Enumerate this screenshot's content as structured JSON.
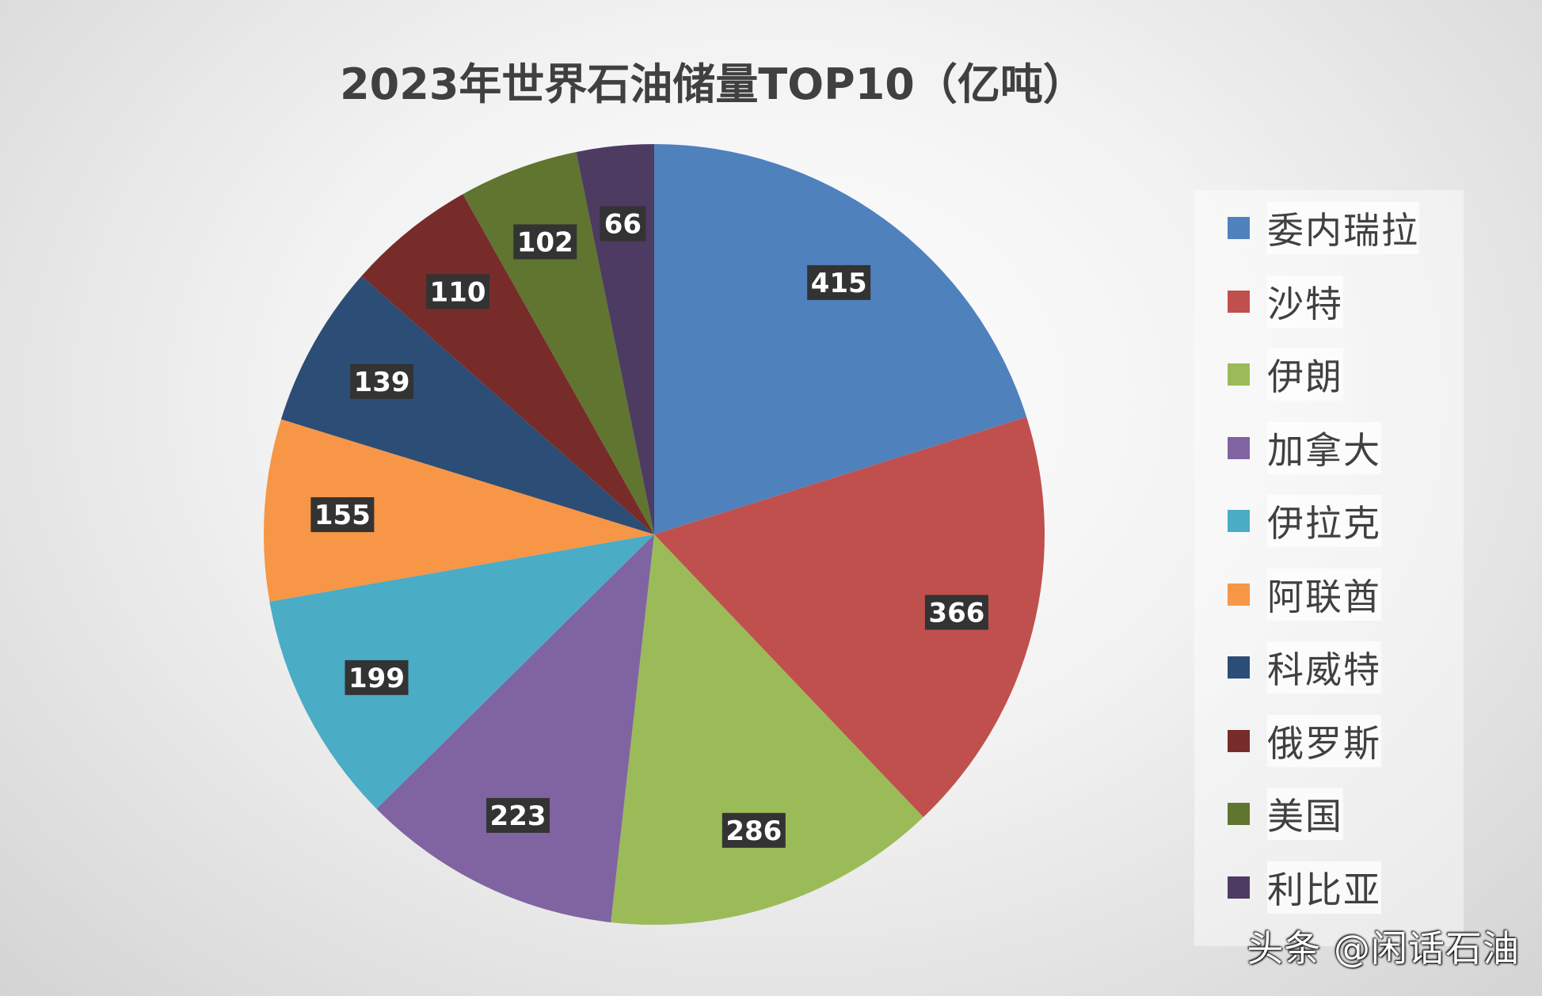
{
  "chart_data": {
    "type": "pie",
    "title": "2023年世界石油储量TOP10（亿吨）",
    "categories": [
      "委内瑞拉",
      "沙特",
      "伊朗",
      "加拿大",
      "伊拉克",
      "阿联酋",
      "科威特",
      "俄罗斯",
      "美国",
      "利比亚"
    ],
    "values": [
      415,
      366,
      286,
      223,
      199,
      155,
      139,
      110,
      102,
      66
    ],
    "colors": [
      "#4f81bd",
      "#c0504d",
      "#9bbb59",
      "#8064a2",
      "#4bacc6",
      "#f79646",
      "#2c4d75",
      "#772c2a",
      "#5f7530",
      "#4d3b62"
    ],
    "data_labels": true,
    "legend_position": "right"
  },
  "watermark": "头条 @闲话石油"
}
